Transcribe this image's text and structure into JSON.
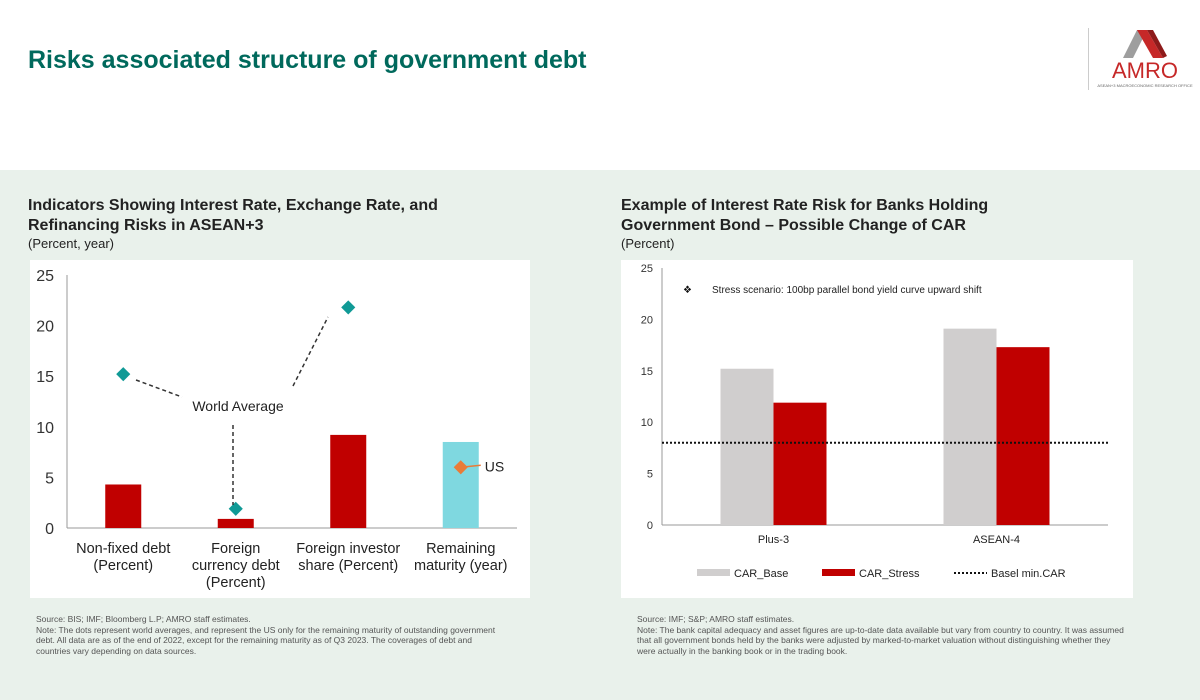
{
  "header": {
    "title": "Risks associated structure of government debt",
    "logo_text": "AMRO",
    "logo_subtext": "ASEAN+3 MACROECONOMIC RESEARCH OFFICE"
  },
  "colors": {
    "title": "#00695c",
    "red": "#c00000",
    "teal_bar": "#7fd8e0",
    "diamond": "#109a96",
    "us": "#e97b37",
    "grey": "#d0cece",
    "band": "#e9f1eb"
  },
  "chart_data": [
    {
      "type": "bar",
      "title": "Indicators Showing Interest Rate, Exchange Rate, and Refinancing Risks in ASEAN+3",
      "subtitle": "(Percent, year)",
      "categories": [
        [
          "Non-fixed debt",
          "(Percent)"
        ],
        [
          "Foreign",
          "currency debt",
          "(Percent)"
        ],
        [
          "Foreign investor",
          "share (Percent)"
        ],
        [
          "Remaining",
          "maturity (year)"
        ]
      ],
      "values": [
        4.3,
        0.9,
        9.2,
        8.5
      ],
      "world_average": [
        15.2,
        1.9,
        21.8,
        null
      ],
      "us": [
        null,
        null,
        null,
        6.0
      ],
      "annotations": {
        "world_average": "World Average",
        "us": "US"
      },
      "ylim": [
        0,
        25
      ],
      "yticks": [
        0,
        5,
        10,
        15,
        20,
        25
      ],
      "grid": false
    },
    {
      "type": "bar",
      "title": "Example of Interest Rate Risk for Banks Holding Government Bond – Possible Change of CAR",
      "subtitle": "(Percent)",
      "categories": [
        "Plus-3",
        "ASEAN-4"
      ],
      "series": [
        {
          "name": "CAR_Base",
          "values": [
            15.2,
            19.1
          ]
        },
        {
          "name": "CAR_Stress",
          "values": [
            11.9,
            17.3
          ]
        }
      ],
      "reference_line": {
        "name": "Basel min.CAR",
        "value": 8
      },
      "annotation": "Stress scenario: 100bp parallel bond yield curve upward shift",
      "ylim": [
        0,
        25
      ],
      "yticks": [
        0,
        5,
        10,
        15,
        20,
        25
      ],
      "grid": false,
      "legend": "bottom"
    }
  ],
  "left": {
    "title1": "Indicators Showing Interest Rate, Exchange Rate, and",
    "title2": "Refinancing Risks in ASEAN+3",
    "subtitle": "(Percent, year)",
    "source": "Source: BIS; IMF; Bloomberg L.P; AMRO staff estimates.",
    "note": "Note: The dots represent world averages, and represent the US only for the remaining maturity of outstanding government debt. All data are as of the end of 2022, except for the remaining maturity as of Q3 2023. The coverages of debt and countries vary depending on data sources."
  },
  "right": {
    "title1": "Example of Interest Rate Risk for Banks Holding",
    "title2": "Government Bond – Possible Change of CAR",
    "subtitle": "(Percent)",
    "source": "Source: IMF; S&P; AMRO staff estimates.",
    "note": "Note: The bank capital adequacy and asset figures are up-to-date data available but vary from country to country. It was assumed that all government bonds held by the banks were adjusted by marked-to-market valuation without distinguishing whether they were actually in the banking book or in the trading book."
  }
}
